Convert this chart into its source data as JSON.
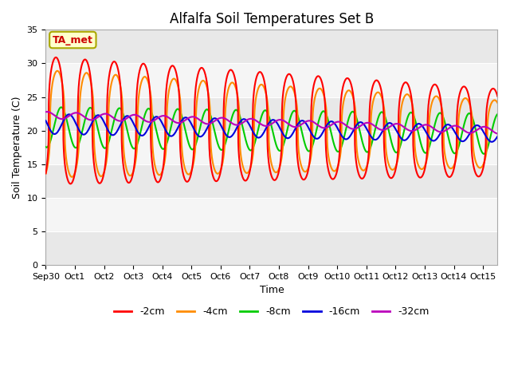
{
  "title": "Alfalfa Soil Temperatures Set B",
  "xlabel": "Time",
  "ylabel": "Soil Temperature (C)",
  "ylim": [
    0,
    35
  ],
  "xlim_days": 15.5,
  "annotation": "TA_met",
  "annotation_color": "#cc0000",
  "annotation_bg": "#ffffcc",
  "annotation_border": "#aaa800",
  "background_color": "#ffffff",
  "series": [
    {
      "label": "-2cm",
      "color": "#ff0000",
      "lw": 1.5
    },
    {
      "label": "-4cm",
      "color": "#ff8c00",
      "lw": 1.5
    },
    {
      "label": "-8cm",
      "color": "#00cc00",
      "lw": 1.5
    },
    {
      "label": "-16cm",
      "color": "#0000dd",
      "lw": 1.5
    },
    {
      "label": "-32cm",
      "color": "#bb00bb",
      "lw": 1.5
    }
  ],
  "band_colors": [
    "#e8e8e8",
    "#f5f5f5",
    "#e8e8e8",
    "#f5f5f5",
    "#e8e8e8",
    "#f5f5f5",
    "#e8e8e8"
  ],
  "xtick_labels": [
    "Sep 30",
    "Oct 1",
    "Oct 2",
    "Oct 3",
    "Oct 4",
    "Oct 5",
    "Oct 6",
    "Oct 7",
    "Oct 8",
    "Oct 9",
    "Oct 10",
    "Oct 11",
    "Oct 12",
    "Oct 13",
    "Oct 14",
    "Oct 15"
  ],
  "xtick_positions": [
    0,
    1,
    2,
    3,
    4,
    5,
    6,
    7,
    8,
    9,
    10,
    11,
    12,
    13,
    14,
    15
  ]
}
